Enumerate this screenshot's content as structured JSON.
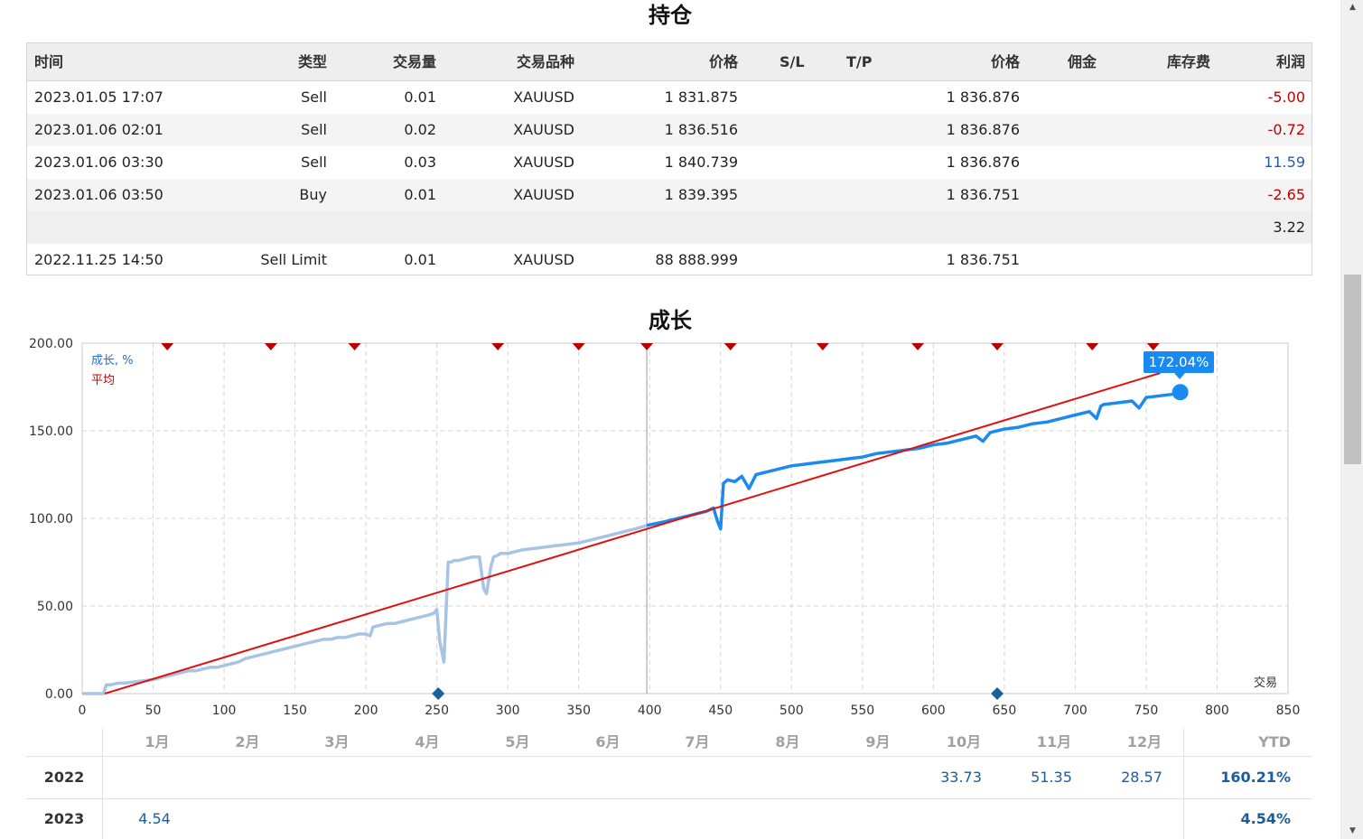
{
  "positions": {
    "title": "持仓",
    "columns": [
      "时间",
      "类型",
      "交易量",
      "交易品种",
      "价格",
      "S/L",
      "T/P",
      "价格",
      "佣金",
      "库存费",
      "利润"
    ],
    "rows": [
      {
        "time": "2023.01.05 17:07",
        "type": "Sell",
        "volume": "0.01",
        "symbol": "XAUUSD",
        "price": "1 831.875",
        "sl": "",
        "tp": "",
        "price2": "1 836.876",
        "commission": "",
        "swap": "",
        "profit": "-5.00",
        "profit_sign": "neg"
      },
      {
        "time": "2023.01.06 02:01",
        "type": "Sell",
        "volume": "0.02",
        "symbol": "XAUUSD",
        "price": "1 836.516",
        "sl": "",
        "tp": "",
        "price2": "1 836.876",
        "commission": "",
        "swap": "",
        "profit": "-0.72",
        "profit_sign": "neg"
      },
      {
        "time": "2023.01.06 03:30",
        "type": "Sell",
        "volume": "0.03",
        "symbol": "XAUUSD",
        "price": "1 840.739",
        "sl": "",
        "tp": "",
        "price2": "1 836.876",
        "commission": "",
        "swap": "",
        "profit": "11.59",
        "profit_sign": "pos"
      },
      {
        "time": "2023.01.06 03:50",
        "type": "Buy",
        "volume": "0.01",
        "symbol": "XAUUSD",
        "price": "1 839.395",
        "sl": "",
        "tp": "",
        "price2": "1 836.751",
        "commission": "",
        "swap": "",
        "profit": "-2.65",
        "profit_sign": "neg"
      }
    ],
    "total": "3.22",
    "pending": {
      "time": "2022.11.25 14:50",
      "type": "Sell Limit",
      "volume": "0.01",
      "symbol": "XAUUSD",
      "price": "88 888.999",
      "price2": "1 836.751"
    }
  },
  "growth": {
    "title": "成长",
    "legend_growth": "成长, %",
    "legend_avg": "平均",
    "tooltip": "172.04%",
    "x_axis_label": "交易"
  },
  "chart_data": {
    "type": "line",
    "xlim": [
      0,
      850
    ],
    "ylim": [
      0,
      200
    ],
    "x_ticks": [
      0,
      50,
      100,
      150,
      200,
      250,
      300,
      350,
      400,
      450,
      500,
      550,
      600,
      650,
      700,
      750,
      800,
      850
    ],
    "y_ticks": [
      "0.00",
      "50.00",
      "100.00",
      "150.00",
      "200.00"
    ],
    "colors": {
      "growth_past": "#a8c4e4",
      "growth_current": "#1a8af0",
      "average": "#e01010",
      "marker_top": "#b80000",
      "marker_bottom": "#1a5f9e"
    },
    "series": [
      {
        "name": "成长, %",
        "x": [
          0,
          15,
          17,
          20,
          25,
          30,
          40,
          50,
          55,
          60,
          65,
          70,
          75,
          80,
          85,
          90,
          95,
          100,
          105,
          110,
          115,
          120,
          125,
          130,
          135,
          140,
          145,
          150,
          155,
          160,
          165,
          170,
          175,
          180,
          185,
          190,
          195,
          200,
          203,
          205,
          210,
          215,
          220,
          225,
          230,
          235,
          240,
          245,
          248,
          250,
          252,
          255,
          258,
          260,
          262,
          265,
          270,
          275,
          280,
          283,
          285,
          288,
          290,
          293,
          295,
          300,
          310,
          320,
          330,
          340,
          350,
          360,
          370,
          380,
          390,
          398
        ],
        "y": [
          0,
          0,
          5,
          5,
          6,
          6,
          7,
          8,
          9,
          10,
          11,
          12,
          13,
          13,
          14,
          15,
          15,
          16,
          17,
          18,
          20,
          21,
          22,
          23,
          24,
          25,
          26,
          27,
          28,
          29,
          30,
          31,
          31,
          32,
          32,
          33,
          34,
          34,
          33,
          38,
          39,
          40,
          40,
          41,
          42,
          43,
          44,
          45,
          46,
          48,
          30,
          18,
          75,
          75,
          76,
          76,
          77,
          78,
          78,
          60,
          57,
          72,
          78,
          79,
          80,
          80,
          82,
          83,
          84,
          85,
          86,
          88,
          90,
          92,
          94,
          96
        ]
      },
      {
        "name": "成长, %",
        "x": [
          398,
          410,
          420,
          430,
          440,
          445,
          448,
          450,
          452,
          455,
          460,
          465,
          470,
          475,
          480,
          490,
          500,
          510,
          520,
          530,
          540,
          550,
          560,
          570,
          580,
          590,
          600,
          610,
          620,
          630,
          635,
          640,
          650,
          660,
          670,
          680,
          690,
          700,
          710,
          715,
          718,
          720,
          730,
          740,
          745,
          750,
          760,
          770,
          774
        ],
        "y": [
          96,
          98,
          100,
          102,
          104,
          106,
          98,
          94,
          120,
          122,
          121,
          124,
          117,
          125,
          126,
          128,
          130,
          131,
          132,
          133,
          134,
          135,
          137,
          138,
          139,
          140,
          142,
          143,
          145,
          147,
          144,
          149,
          151,
          152,
          154,
          155,
          157,
          159,
          161,
          157,
          164,
          165,
          166,
          167,
          163,
          169,
          170,
          171,
          172.04
        ]
      },
      {
        "name": "平均",
        "x": [
          16,
          760
        ],
        "y": [
          0,
          183
        ]
      }
    ],
    "top_markers_x": [
      60,
      133,
      192,
      293,
      350,
      398,
      457,
      522,
      589,
      645,
      712,
      755
    ],
    "bottom_markers_x": [
      251,
      645
    ]
  },
  "monthly": {
    "months": [
      "1月",
      "2月",
      "3月",
      "4月",
      "5月",
      "6月",
      "7月",
      "8月",
      "9月",
      "10月",
      "11月",
      "12月"
    ],
    "ytd_label": "YTD",
    "rows": [
      {
        "year": "2022",
        "values": [
          "",
          "",
          "",
          "",
          "",
          "",
          "",
          "",
          "",
          "33.73",
          "51.35",
          "28.57"
        ],
        "ytd": "160.21%"
      },
      {
        "year": "2023",
        "values": [
          "4.54",
          "",
          "",
          "",
          "",
          "",
          "",
          "",
          "",
          "",
          "",
          ""
        ],
        "ytd": "4.54%"
      }
    ]
  }
}
